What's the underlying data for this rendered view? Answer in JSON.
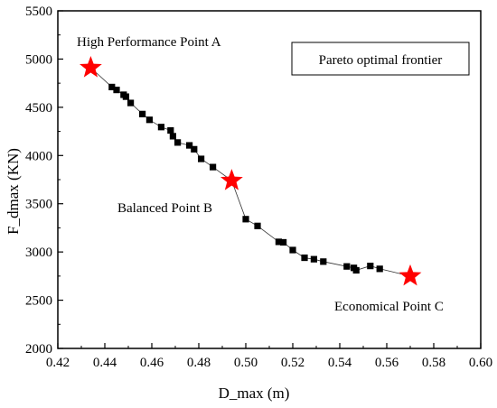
{
  "chart_data": {
    "type": "scatter",
    "xlabel": "D_max (m)",
    "ylabel": "F_dmax (KN)",
    "xlim": [
      0.42,
      0.6
    ],
    "ylim": [
      2000,
      5500
    ],
    "xticks": [
      "0.42",
      "0.44",
      "0.46",
      "0.48",
      "0.50",
      "0.52",
      "0.54",
      "0.56",
      "0.58",
      "0.60"
    ],
    "yticks": [
      "2000",
      "2500",
      "3000",
      "3500",
      "4000",
      "4500",
      "5000",
      "5500"
    ],
    "grid": false,
    "legend": {
      "label": "Pareto optimal frontier",
      "placement": "top-right"
    },
    "series": [
      {
        "points": [
          [
            0.434,
            4910
          ],
          [
            0.443,
            4710
          ],
          [
            0.445,
            4680
          ],
          [
            0.448,
            4630
          ],
          [
            0.449,
            4610
          ],
          [
            0.451,
            4545
          ],
          [
            0.456,
            4430
          ],
          [
            0.459,
            4370
          ],
          [
            0.464,
            4295
          ],
          [
            0.468,
            4260
          ],
          [
            0.469,
            4200
          ],
          [
            0.471,
            4135
          ],
          [
            0.476,
            4105
          ],
          [
            0.478,
            4065
          ],
          [
            0.481,
            3965
          ],
          [
            0.486,
            3880
          ],
          [
            0.494,
            3740
          ],
          [
            0.5,
            3340
          ],
          [
            0.505,
            3270
          ],
          [
            0.514,
            3105
          ],
          [
            0.516,
            3100
          ],
          [
            0.52,
            3020
          ],
          [
            0.525,
            2940
          ],
          [
            0.529,
            2925
          ],
          [
            0.533,
            2900
          ],
          [
            0.543,
            2850
          ],
          [
            0.546,
            2835
          ],
          [
            0.547,
            2810
          ],
          [
            0.553,
            2855
          ],
          [
            0.557,
            2825
          ],
          [
            0.57,
            2750
          ]
        ],
        "marker": "square",
        "color": "#000000"
      }
    ],
    "highlight_points": [
      {
        "x": 0.434,
        "y": 4910,
        "label": "High Performance Point A"
      },
      {
        "x": 0.494,
        "y": 3740,
        "label": "Balanced Point B"
      },
      {
        "x": 0.57,
        "y": 2750,
        "label": "Economical Point C"
      }
    ],
    "highlight_color": "#ff0000"
  }
}
